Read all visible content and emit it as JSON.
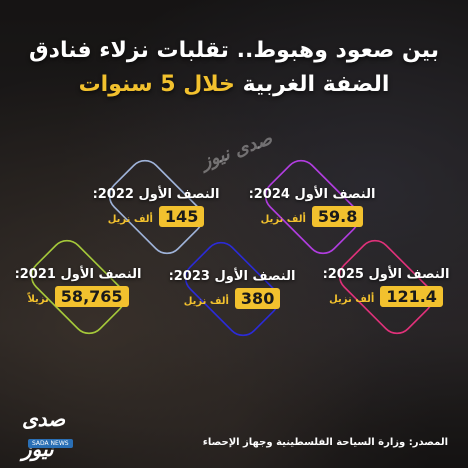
{
  "title": {
    "line1": "بين صعود وهبوط.. تقلبات نزلاء فنادق",
    "line2_white": "الضفة الغربية",
    "line2_accent": "خلال 5 سنوات"
  },
  "cards": [
    {
      "label": "النصف الأول 2022:",
      "value": "145",
      "unit": "ألف نزيل",
      "color": "#9fb3d9"
    },
    {
      "label": "النصف الأول 2024:",
      "value": "59.8",
      "unit": "ألف نزيل",
      "color": "#b13de0"
    },
    {
      "label": "النصف الأول 2021:",
      "value": "58,765",
      "unit": "نزيلاً",
      "color": "#a5c83a"
    },
    {
      "label": "النصف الأول 2023:",
      "value": "380",
      "unit": "ألف نزيل",
      "color": "#2b2bd6"
    },
    {
      "label": "النصف الأول 2025:",
      "value": "121.4",
      "unit": "ألف نزيل",
      "color": "#e0317a"
    }
  ],
  "source": "المصدر: وزارة السياحة الفلسطينية وجهاز الإحصاء",
  "logo": {
    "mark": "صدى نيوز",
    "sub": "SADA NEWS"
  },
  "watermark": "صدى نيوز"
}
